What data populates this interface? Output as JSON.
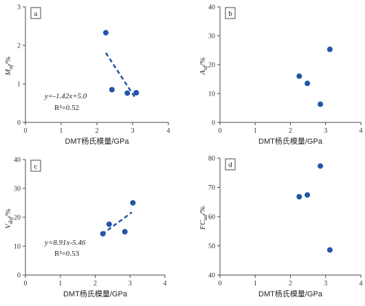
{
  "chart_data": [
    {
      "panel": "a",
      "type": "scatter",
      "xlabel": "DMT杨氏模量/GPa",
      "ylabel_main": "M",
      "ylabel_sub": "af",
      "ylabel_unit": "/%",
      "xlim": [
        0,
        4
      ],
      "ylim": [
        0,
        3
      ],
      "xticks": [
        "0",
        "1",
        "2",
        "3",
        "4"
      ],
      "yticks": [
        "0",
        "1",
        "2",
        "3"
      ],
      "points": [
        {
          "x": 2.25,
          "y": 2.33
        },
        {
          "x": 2.42,
          "y": 0.85
        },
        {
          "x": 2.85,
          "y": 0.76
        },
        {
          "x": 3.1,
          "y": 0.77
        }
      ],
      "trend": {
        "x": [
          2.25,
          3.05
        ],
        "y": [
          1.805,
          0.669
        ]
      },
      "equation": "y=-1.42x+5.0",
      "r2": "R²=0.52",
      "grid": false
    },
    {
      "panel": "b",
      "type": "scatter",
      "xlabel": "DMT杨氏模量/GPa",
      "ylabel_main": "A",
      "ylabel_sub": "af",
      "ylabel_unit": "/%",
      "xlim": [
        0,
        4
      ],
      "ylim": [
        0,
        40
      ],
      "xticks": [
        "0",
        "1",
        "2",
        "3",
        "4"
      ],
      "yticks": [
        "0",
        "10",
        "20",
        "30",
        "40"
      ],
      "points": [
        {
          "x": 2.25,
          "y": 16.0
        },
        {
          "x": 2.48,
          "y": 13.5
        },
        {
          "x": 2.85,
          "y": 6.3
        },
        {
          "x": 3.12,
          "y": 25.3
        }
      ],
      "grid": false
    },
    {
      "panel": "c",
      "type": "scatter",
      "xlabel": "DMT杨氏模量/GPa",
      "ylabel_main": "V",
      "ylabel_sub": "daf",
      "ylabel_unit": "/%",
      "xlim": [
        0,
        4
      ],
      "ylim": [
        0,
        40
      ],
      "xticks": [
        "0",
        "1",
        "2",
        "3",
        "4"
      ],
      "yticks": [
        "0",
        "10",
        "20",
        "30",
        "40"
      ],
      "points": [
        {
          "x": 2.22,
          "y": 14.3
        },
        {
          "x": 2.4,
          "y": 17.6
        },
        {
          "x": 2.85,
          "y": 15.0
        },
        {
          "x": 3.08,
          "y": 25.0
        }
      ],
      "trend": {
        "x": [
          2.2,
          3.05
        ],
        "y": [
          14.14,
          21.72
        ]
      },
      "equation": "y=8.91x-5.46",
      "r2": "R²=0.53",
      "grid": false
    },
    {
      "panel": "d",
      "type": "scatter",
      "xlabel": "DMT杨氏模量/GPa",
      "ylabel_main": "FC",
      "ylabel_sub": "ad",
      "ylabel_unit": "/%",
      "xlim": [
        0,
        4
      ],
      "ylim": [
        40,
        80
      ],
      "xticks": [
        "0",
        "1",
        "2",
        "3",
        "4"
      ],
      "yticks": [
        "40",
        "50",
        "60",
        "70",
        "80"
      ],
      "points": [
        {
          "x": 2.25,
          "y": 66.8
        },
        {
          "x": 2.48,
          "y": 67.4
        },
        {
          "x": 2.85,
          "y": 77.3
        },
        {
          "x": 3.12,
          "y": 48.6
        }
      ],
      "grid": false
    }
  ]
}
